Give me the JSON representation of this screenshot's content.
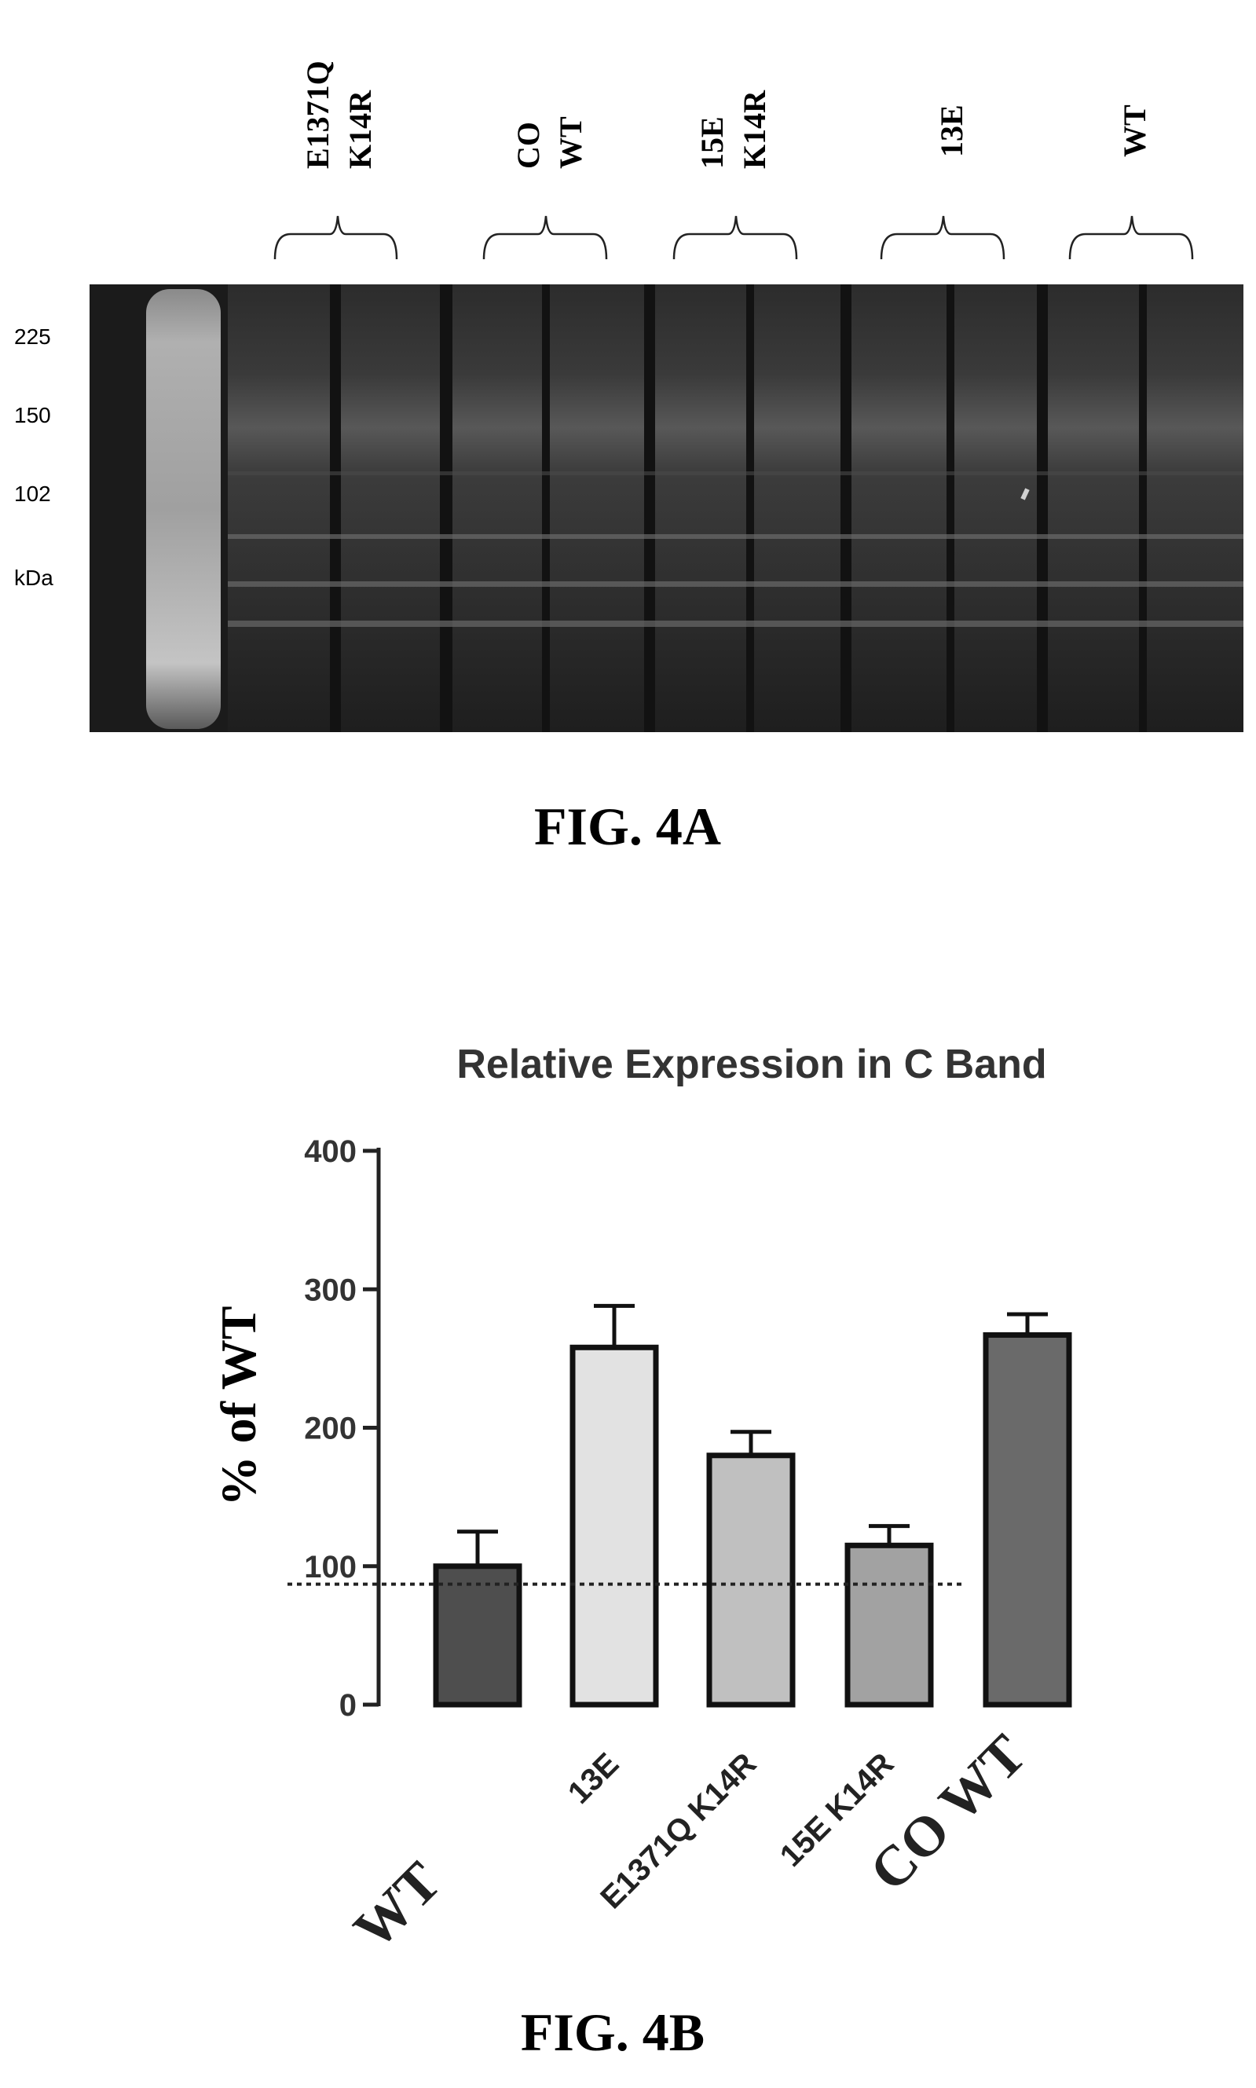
{
  "fig_a": {
    "caption": "FIG. 4A",
    "lane_groups": [
      {
        "lines": [
          "E1371Q",
          "K14R"
        ]
      },
      {
        "lines": [
          "CO",
          "WT"
        ]
      },
      {
        "lines": [
          "15E",
          "K14R"
        ]
      },
      {
        "lines": [
          "13E"
        ]
      },
      {
        "lines": [
          "WT"
        ]
      }
    ],
    "markers": [
      "225",
      "150",
      "102",
      "kDa"
    ]
  },
  "fig_b": {
    "caption": "FIG. 4B"
  },
  "chart_data": {
    "type": "bar",
    "title": "Relative Expression in C Band",
    "xlabel": "",
    "ylabel": "% of WT",
    "ylim": [
      0,
      400
    ],
    "yticks": [
      "0",
      "100",
      "200",
      "300",
      "400"
    ],
    "categories": [
      "WT",
      "13E",
      "E1371Q K14R",
      "15E K14R",
      "CO WT"
    ],
    "values": [
      100,
      258,
      180,
      115,
      267
    ],
    "errors": [
      25,
      30,
      17,
      14,
      15
    ],
    "reference_line": 87,
    "colors": [
      "#4e4e4e",
      "#e2e2e2",
      "#c0c0c0",
      "#a2a2a2",
      "#6a6a6a"
    ],
    "grid": false,
    "legend": "none"
  }
}
